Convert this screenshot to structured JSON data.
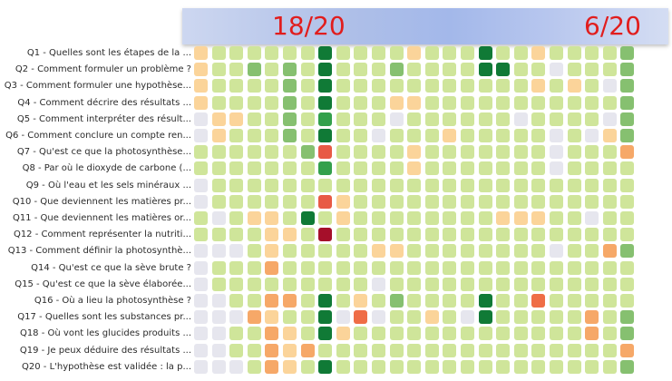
{
  "scores": {
    "left": "18/20",
    "right": "6/20"
  },
  "questions": [
    "Q1 - Quelles sont les étapes de la ...",
    "Q2 - Comment formuler un problème ?",
    "Q3 - Comment formuler une hypothèse...",
    "Q4 - Comment décrire des résultats ...",
    "Q5 - Comment interpréter des résult...",
    "Q6 - Comment conclure un compte ren...",
    "Q7 - Qu'est ce que la photosynthèse...",
    "Q8 - Par où le dioxyde de carbone (...",
    "Q9 - Où l'eau et les sels minéraux ...",
    "Q10 - Que deviennent les matières pr...",
    "Q11 - Que deviennent les matières or...",
    "Q12 - Comment représenter la nutriti...",
    "Q13 - Comment définir la photosynthè...",
    "Q14 - Qu'est ce que la sève brute ?",
    "Q15 - Qu'est ce que la sève élaborée...",
    "Q16 - Où a lieu la photosynthèse ?",
    "Q17 - Quelles sont les substances pr...",
    "Q18 - Où vont les glucides produits ...",
    "Q19 - Je peux déduire des résultats ...",
    "Q20 - L'hypothèse est validée : la p..."
  ],
  "palette": {
    "g": "#e6e6ee",
    "y": "#f8efa6",
    "o": "#fbd49a",
    "O": "#f6a868",
    "R": "#ef6d46",
    "r": "#e85a45",
    "m": "#a50f2a",
    "c": "#e3f09a",
    "l": "#cfe59a",
    "k": "#86c070",
    "M": "#4fb060",
    "s": "#33a04c",
    "d": "#107a36"
  },
  "grid": [
    "olllllldllllollldllollllk",
    "ollklkldlllkllllddllglllk",
    "ollllkldlllllllllllololgk",
    "ollllkldllloolllllllllllk",
    "goollklslllgllllllgllllgk",
    "golllkldllglllolllllglgok",
    "llllllkrllllolllllllglllO",
    "lllllllsllllolllllllgllll",
    "gllllllllllllllllllllllll",
    "gllllllrollllllllllllllll",
    "lglooldlollllllllooollgll",
    "lllloolmlllllllllllllllll",
    "ggglollllloollllllllgllOk",
    "glllOllllllllllllllllllll",
    "glllllllllgllllllllllllll",
    "ggllOOldlolklllldllRlllll",
    "gggOolldgRgllolgdlllllOlk",
    "ggllOoldolllllllllllllOlk",
    "ggllOoOlllllllllllllllllO",
    "ggglOoldllllllllllllllllk"
  ]
}
